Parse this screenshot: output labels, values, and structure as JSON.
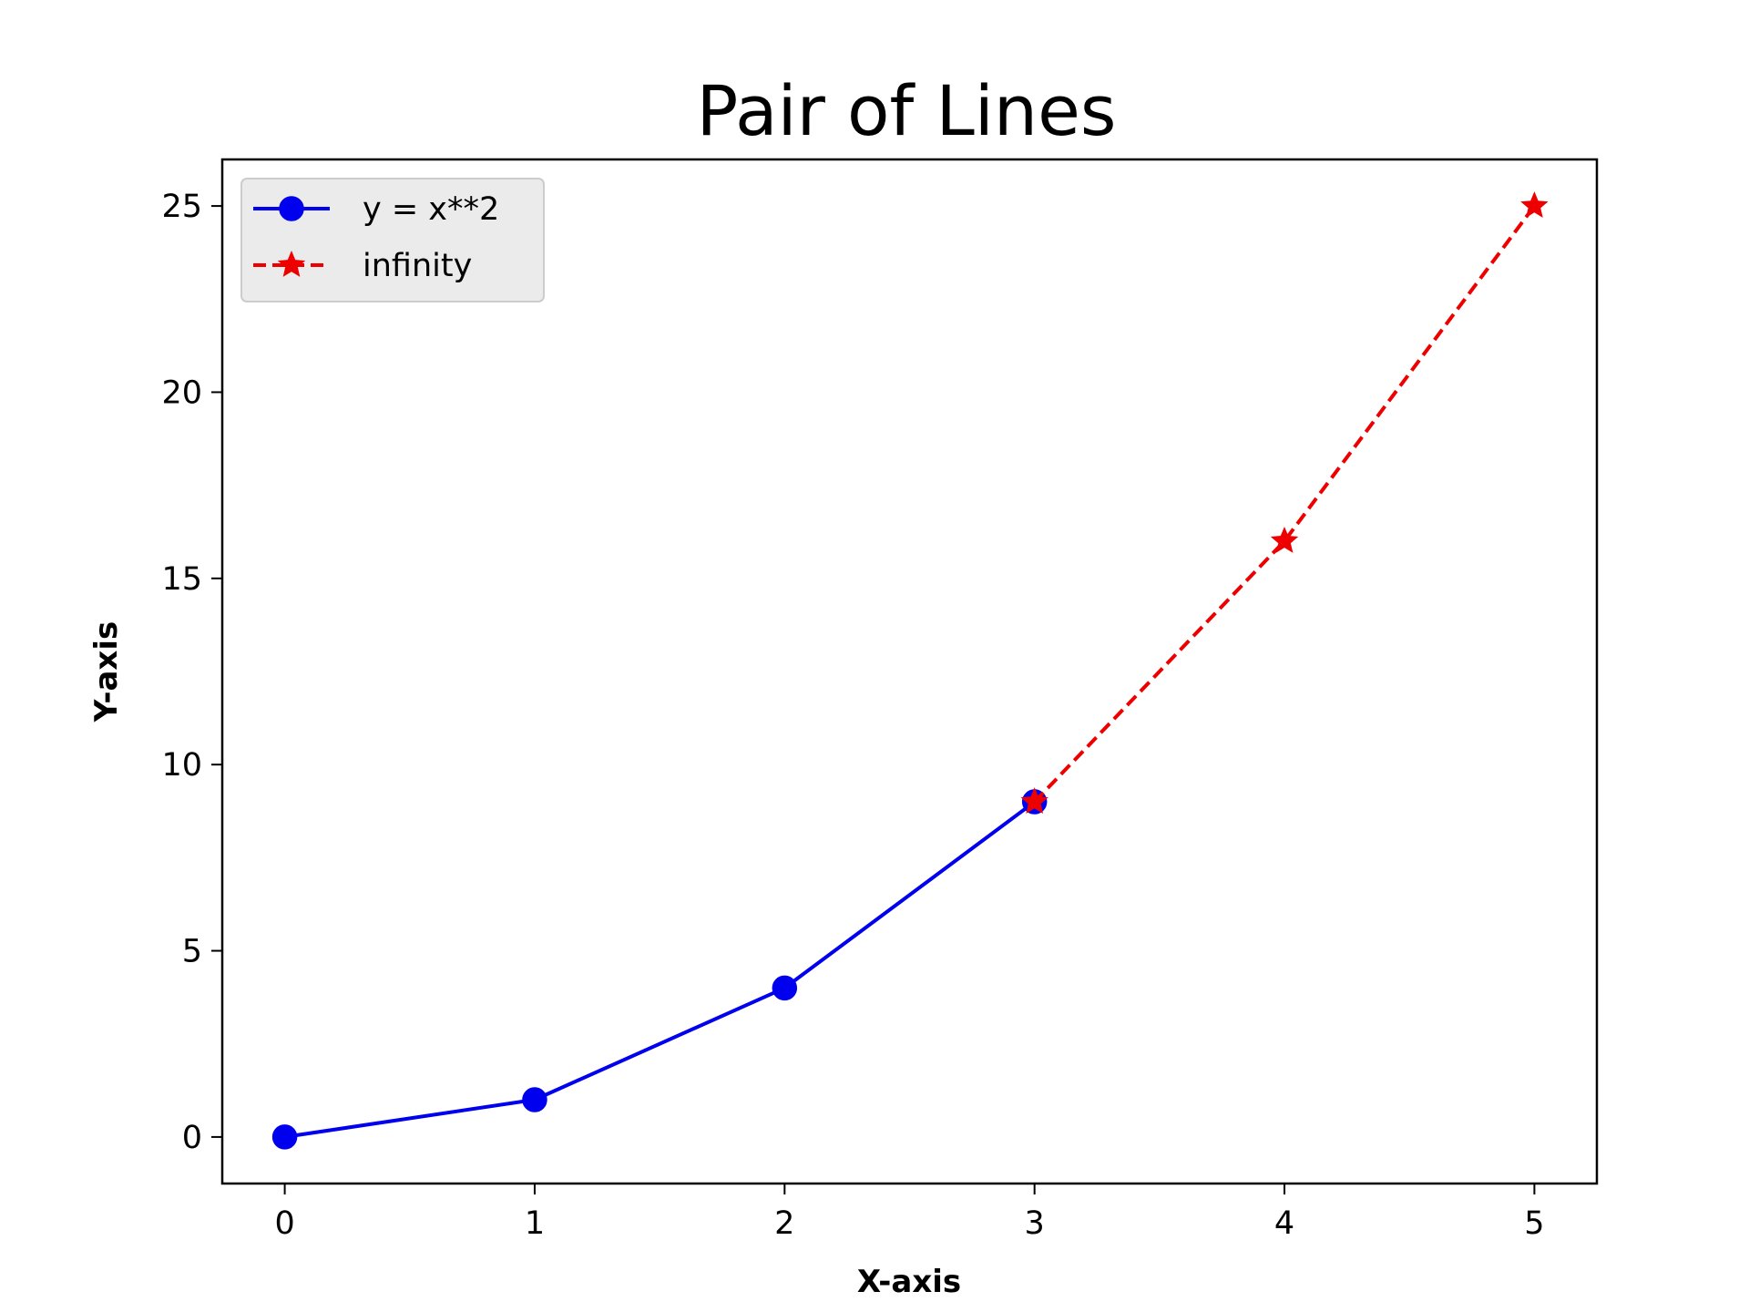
{
  "chart_data": {
    "type": "line",
    "title": "Pair of Lines",
    "xlabel": "X-axis",
    "ylabel": "Y-axis",
    "xlim": [
      -0.25,
      5.25
    ],
    "ylim": [
      -1.25,
      26.25
    ],
    "xticks": [
      0,
      1,
      2,
      3,
      4,
      5
    ],
    "yticks": [
      0,
      5,
      10,
      15,
      20,
      25
    ],
    "grid": false,
    "legend_position": "top-left",
    "series": [
      {
        "name": "y = x**2",
        "x": [
          0,
          1,
          2,
          3
        ],
        "y": [
          0,
          1,
          4,
          9
        ],
        "color": "#0000ee",
        "line_style": "solid",
        "marker": "circle"
      },
      {
        "name": "infinity",
        "x": [
          3,
          4,
          5
        ],
        "y": [
          9,
          16,
          25
        ],
        "color": "#ee0000",
        "line_style": "dashed",
        "marker": "star"
      }
    ]
  }
}
